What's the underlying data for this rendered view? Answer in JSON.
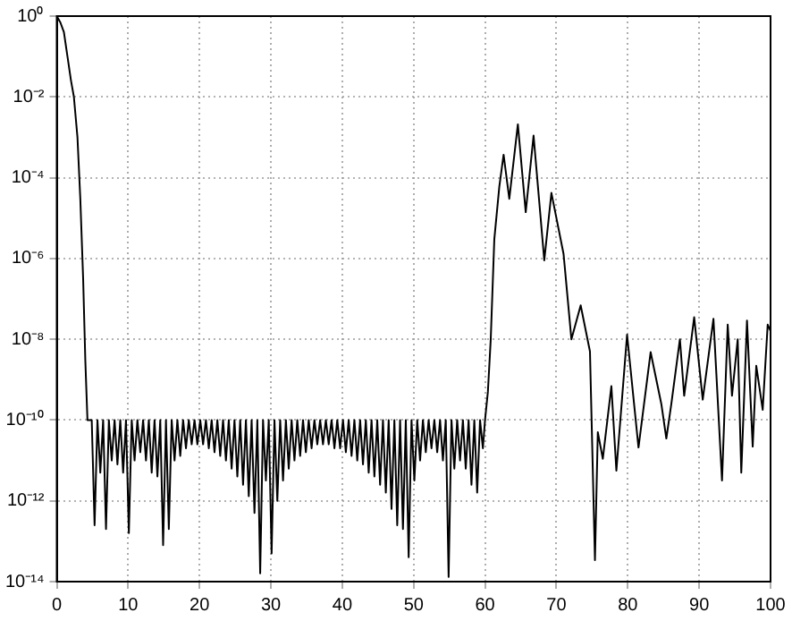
{
  "chart_data": {
    "type": "line",
    "log": "y",
    "grid": true,
    "line_style": "solid",
    "marker": "none",
    "legend": false,
    "xlim": [
      0,
      100
    ],
    "xticks": [
      0,
      10,
      20,
      30,
      40,
      50,
      60,
      70,
      80,
      90,
      100
    ],
    "ylim": [
      1e-14,
      1
    ],
    "yticks": [
      {
        "value": 1e-14,
        "label": "10⁻¹⁴"
      },
      {
        "value": 1e-12,
        "label": "10⁻¹²"
      },
      {
        "value": 1e-10,
        "label": "10⁻¹⁰"
      },
      {
        "value": 1e-08,
        "label": "10⁻⁸"
      },
      {
        "value": 1e-06,
        "label": "10⁻⁶"
      },
      {
        "value": 0.0001,
        "label": "10⁻⁴"
      },
      {
        "value": 0.01,
        "label": "10⁻²"
      },
      {
        "value": 1,
        "label": "10⁰"
      }
    ],
    "series": [
      {
        "color": "#000000",
        "x": [
          0,
          0.5,
          1.0,
          1.5,
          2.0,
          2.4,
          2.9,
          3.3,
          3.7,
          4.0,
          4.3,
          4.9,
          5.3,
          5.7,
          6.1,
          6.5,
          6.9,
          7.3,
          7.7,
          8.1,
          8.5,
          8.9,
          9.3,
          9.7,
          10.1,
          10.5,
          10.9,
          11.3,
          11.7,
          12.1,
          12.5,
          12.9,
          13.3,
          13.7,
          14.1,
          14.5,
          14.9,
          15.3,
          15.7,
          16.1,
          16.5,
          16.9,
          17.3,
          17.7,
          18.1,
          18.5,
          18.9,
          19.3,
          19.7,
          20.1,
          20.5,
          20.9,
          21.3,
          21.7,
          22.1,
          22.5,
          22.9,
          23.3,
          23.7,
          24.1,
          24.5,
          24.9,
          25.3,
          25.7,
          26.1,
          26.5,
          26.9,
          27.3,
          27.7,
          28.1,
          28.5,
          28.9,
          29.3,
          29.7,
          30.1,
          30.5,
          30.9,
          31.3,
          31.7,
          32.1,
          32.5,
          32.9,
          33.3,
          33.7,
          34.1,
          34.5,
          34.9,
          35.3,
          35.7,
          36.1,
          36.5,
          36.9,
          37.3,
          37.7,
          38.1,
          38.5,
          38.9,
          39.3,
          39.7,
          40.1,
          40.5,
          40.9,
          41.3,
          41.7,
          42.1,
          42.5,
          42.9,
          43.3,
          43.7,
          44.1,
          44.5,
          44.9,
          45.3,
          45.7,
          46.1,
          46.5,
          46.9,
          47.3,
          47.7,
          48.1,
          48.5,
          48.9,
          49.3,
          49.7,
          50.1,
          50.5,
          50.9,
          51.3,
          51.7,
          52.1,
          52.5,
          52.9,
          53.3,
          53.7,
          54.1,
          54.5,
          54.9,
          55.3,
          55.7,
          56.1,
          56.5,
          56.9,
          57.3,
          57.7,
          58.1,
          58.5,
          58.9,
          59.3,
          59.7,
          60.0,
          60.4,
          60.8,
          61.3,
          62.0,
          62.6,
          63.4,
          64.6,
          65.7,
          66.8,
          68.3,
          69.3,
          71.0,
          72.1,
          73.4,
          74.7,
          75.4,
          75.8,
          76.5,
          77.7,
          78.4,
          79.9,
          81.5,
          83.2,
          84.7,
          85.4,
          86.1,
          87.3,
          87.9,
          89.3,
          90.5,
          92.0,
          93.2,
          94.0,
          94.6,
          95.4,
          95.9,
          96.7,
          97.5,
          98.0,
          98.9,
          99.6,
          100
        ],
        "values": [
          1,
          0.7,
          0.4,
          0.1,
          0.025,
          0.01,
          0.001,
          3e-05,
          3e-07,
          3e-09,
          1e-10,
          1e-10,
          2.5e-13,
          1e-10,
          5e-12,
          1e-10,
          2e-13,
          1e-10,
          1e-11,
          1e-10,
          8e-12,
          1e-10,
          5e-12,
          1e-10,
          1.6e-13,
          1e-10,
          1e-11,
          1e-10,
          1.6e-11,
          1e-10,
          1e-11,
          1e-10,
          5e-12,
          1e-10,
          4e-12,
          1e-10,
          8e-14,
          1e-10,
          2e-13,
          1e-10,
          1e-11,
          1e-10,
          1.3e-11,
          1e-10,
          2e-11,
          1e-10,
          2.5e-11,
          1e-10,
          2.5e-11,
          1e-10,
          2.5e-11,
          1e-10,
          2e-11,
          1e-10,
          1.6e-11,
          1e-10,
          1.3e-11,
          1e-10,
          1e-11,
          1e-10,
          6.3e-12,
          1e-10,
          4e-12,
          1e-10,
          2.5e-12,
          1e-10,
          1.3e-12,
          1e-10,
          5e-13,
          1e-10,
          1.6e-14,
          1e-10,
          3.2e-12,
          1e-10,
          5e-14,
          1e-10,
          1e-12,
          1e-10,
          3.2e-12,
          1e-10,
          6.3e-12,
          1e-10,
          1e-11,
          1e-10,
          1.3e-11,
          1e-10,
          1.6e-11,
          1e-10,
          2e-11,
          1e-10,
          2.5e-11,
          1e-10,
          2.5e-11,
          1e-10,
          2.5e-11,
          1e-10,
          2e-11,
          1e-10,
          2e-11,
          1e-10,
          1.6e-11,
          1e-10,
          1.3e-11,
          1e-10,
          1e-11,
          1e-10,
          8e-12,
          1e-10,
          5e-12,
          1e-10,
          4e-12,
          1e-10,
          2.5e-12,
          1e-10,
          1.6e-12,
          1e-10,
          6.3e-13,
          1e-10,
          2.5e-13,
          1e-10,
          2e-13,
          1e-10,
          4e-14,
          1e-10,
          3.2e-12,
          1e-10,
          1e-11,
          1e-10,
          1.6e-11,
          1e-10,
          2e-11,
          1e-10,
          1.6e-11,
          1e-10,
          1e-11,
          1e-10,
          1.3e-14,
          1e-10,
          6.3e-12,
          1e-10,
          1e-11,
          1e-10,
          6.3e-12,
          1e-10,
          2.5e-12,
          1e-10,
          1.6e-12,
          1e-10,
          2e-11,
          1e-10,
          5e-10,
          1e-08,
          3e-06,
          6e-05,
          0.00037,
          3e-05,
          0.0021,
          1.4e-05,
          0.0011,
          9e-07,
          4.2e-05,
          1.3e-06,
          1e-08,
          6.9e-08,
          5e-09,
          3.4e-14,
          5e-11,
          1.1e-11,
          6.9e-10,
          5.6e-12,
          1.3e-08,
          2.1e-11,
          4.8e-09,
          2.5e-10,
          3.5e-11,
          2.5e-10,
          1e-08,
          4e-10,
          3.5e-08,
          3.2e-10,
          3.2e-08,
          3.2e-12,
          2.3e-08,
          4e-10,
          1e-08,
          5e-12,
          2.9e-08,
          2.2e-11,
          2.2e-09,
          1.8e-10,
          2.3e-08,
          1.6e-08
        ]
      }
    ]
  }
}
